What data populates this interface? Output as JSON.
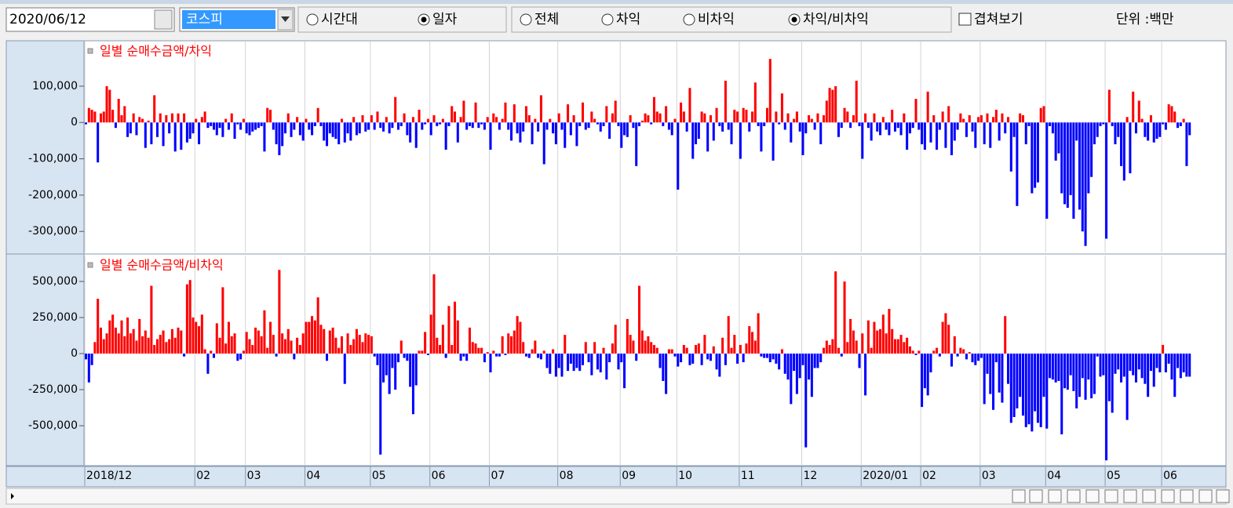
{
  "toolbar": {
    "date": "2020/06/12",
    "market": "코스피",
    "period_options": [
      {
        "label": "시간대",
        "checked": false
      },
      {
        "label": "일자",
        "checked": true
      }
    ],
    "type_options": [
      {
        "label": "전체",
        "checked": false
      },
      {
        "label": "차익",
        "checked": false
      },
      {
        "label": "비차익",
        "checked": false
      },
      {
        "label": "차익/비차익",
        "checked": true
      }
    ],
    "overlay": {
      "label": "겹쳐보기",
      "checked": false
    },
    "unit": "단위 :백만"
  },
  "x_axis": {
    "categories": [
      "2018/12",
      null,
      null,
      null,
      null,
      null,
      null,
      null,
      null,
      null,
      null,
      null,
      null,
      null,
      null,
      null,
      null,
      null,
      null,
      null,
      null,
      null,
      null,
      null,
      null,
      null,
      null,
      null,
      null,
      null,
      null,
      null,
      null,
      null,
      null,
      null,
      null,
      "02",
      null,
      null,
      null,
      null,
      null,
      null,
      null,
      null,
      null,
      null,
      null,
      null,
      null,
      null,
      null,
      null,
      "03",
      null,
      null,
      null,
      null,
      null,
      null,
      null,
      null,
      null,
      null,
      null,
      null,
      null,
      null,
      null,
      null,
      null,
      null,
      null,
      "04",
      null,
      null,
      null,
      null,
      null,
      null,
      null,
      null,
      null,
      null,
      null,
      null,
      null,
      null,
      null,
      null,
      null,
      null,
      null,
      null,
      null,
      "05",
      null,
      null,
      null,
      null,
      null,
      null,
      null,
      null,
      null,
      null,
      null,
      null,
      null,
      null,
      null,
      null,
      null,
      null,
      null,
      "06",
      null,
      null,
      null,
      null,
      null,
      null,
      null,
      null,
      null,
      null,
      null,
      null,
      null,
      null,
      null,
      null,
      null,
      null,
      null,
      "07",
      null,
      null,
      null,
      null,
      null,
      null,
      null,
      null,
      null,
      null,
      null,
      null,
      null,
      null,
      null,
      null,
      null,
      null,
      null,
      null,
      null,
      null,
      "08",
      null,
      null,
      null,
      null,
      null,
      null,
      null,
      null,
      null,
      null,
      null,
      null,
      null,
      null,
      null,
      null,
      null,
      null,
      null,
      null,
      "09",
      null,
      null,
      null,
      null,
      null,
      null,
      null,
      null,
      null,
      null,
      null,
      null,
      null,
      null,
      null,
      null,
      null,
      null,
      "10",
      null,
      null,
      null,
      null,
      null,
      null,
      null,
      null,
      null,
      null,
      null,
      null,
      null,
      null,
      null,
      null,
      null,
      null,
      null,
      null,
      "11",
      null,
      null,
      null,
      null,
      null,
      null,
      null,
      null,
      null,
      null,
      null,
      null,
      null,
      null,
      null,
      null,
      null,
      null,
      null,
      null,
      "12",
      null,
      null,
      null,
      null,
      null,
      null,
      null,
      null,
      null,
      null,
      null,
      null,
      null,
      null,
      null,
      null,
      null,
      null,
      null,
      "2020/01",
      null,
      null,
      null,
      null,
      null,
      null,
      null,
      null,
      null,
      null,
      null,
      null,
      null,
      null,
      null,
      null,
      null,
      null,
      null,
      "02",
      null,
      null,
      null,
      null,
      null,
      null,
      null,
      null,
      null,
      null,
      null,
      null,
      null,
      null,
      null,
      null,
      null,
      null,
      null,
      "03",
      null,
      null,
      null,
      null,
      null,
      null,
      null,
      null,
      null,
      null,
      null,
      null,
      null,
      null,
      null,
      null,
      null,
      null,
      null,
      null,
      null,
      "04",
      null,
      null,
      null,
      null,
      null,
      null,
      null,
      null,
      null,
      null,
      null,
      null,
      null,
      null,
      null,
      null,
      null,
      null,
      null,
      "05",
      null,
      null,
      null,
      null,
      null,
      null,
      null,
      null,
      null,
      null,
      null,
      null,
      null,
      null,
      null,
      null,
      null,
      null,
      "06",
      null,
      null,
      null,
      null,
      null,
      null,
      null,
      null,
      null
    ],
    "grid": true
  },
  "chart_data": [
    {
      "type": "bar",
      "title": "일별 순매수금액/차익",
      "positive_color": "#ff0000",
      "negative_color": "#0000ff",
      "title_color": "#ff0000",
      "ylim": [
        -360000,
        225000
      ],
      "yticks": [
        {
          "value": -300000,
          "label": "-300,000"
        },
        {
          "value": -200000,
          "label": "-200,000"
        },
        {
          "value": -100000,
          "label": "-100,000"
        },
        0,
        {
          "value": 100000,
          "label": "100,000"
        }
      ],
      "values": [
        -5000,
        40000,
        35000,
        30000,
        -110000,
        25000,
        30000,
        100000,
        90000,
        35000,
        -15000,
        65000,
        20000,
        45000,
        -40000,
        -30000,
        25000,
        -35000,
        15000,
        10000,
        -70000,
        5000,
        -60000,
        75000,
        -40000,
        25000,
        -65000,
        20000,
        -30000,
        25000,
        -80000,
        25000,
        -75000,
        25000,
        -55000,
        -45000,
        -30000,
        10000,
        -60000,
        15000,
        30000,
        -15000,
        -10000,
        -20000,
        -35000,
        -15000,
        -40000,
        10000,
        -20000,
        25000,
        -45000,
        -5000,
        -20000,
        10000,
        -30000,
        -35000,
        -25000,
        -20000,
        -15000,
        -10000,
        -80000,
        40000,
        35000,
        -20000,
        -60000,
        -90000,
        -65000,
        -30000,
        25000,
        -40000,
        -20000,
        15000,
        -35000,
        -50000,
        10000,
        -20000,
        -35000,
        -10000,
        40000,
        -10000,
        -50000,
        -65000,
        -30000,
        -40000,
        -45000,
        -60000,
        10000,
        -55000,
        -30000,
        -50000,
        15000,
        -35000,
        -30000,
        20000,
        -25000,
        -20000,
        20000,
        -20000,
        30000,
        -15000,
        -25000,
        15000,
        -30000,
        -15000,
        70000,
        -20000,
        -10000,
        25000,
        -35000,
        -55000,
        15000,
        -70000,
        35000,
        -20000,
        -5000,
        10000,
        -35000,
        20000,
        -10000,
        -5000,
        10000,
        -75000,
        -10000,
        45000,
        30000,
        -55000,
        15000,
        60000,
        -20000,
        -10000,
        -15000,
        55000,
        -15000,
        -5000,
        -20000,
        15000,
        -75000,
        25000,
        15000,
        -20000,
        10000,
        55000,
        -20000,
        -50000,
        50000,
        -30000,
        -55000,
        -25000,
        45000,
        20000,
        -60000,
        10000,
        -25000,
        75000,
        -115000,
        -20000,
        10000,
        -30000,
        -60000,
        25000,
        -20000,
        -70000,
        50000,
        -35000,
        20000,
        -65000,
        -10000,
        55000,
        -20000,
        -15000,
        30000,
        10000,
        -5000,
        -25000,
        -10000,
        45000,
        -45000,
        25000,
        60000,
        -10000,
        -70000,
        -35000,
        -40000,
        20000,
        -15000,
        -120000,
        -10000,
        5000,
        25000,
        20000,
        -5000,
        70000,
        30000,
        25000,
        -10000,
        45000,
        -20000,
        -35000,
        10000,
        -185000,
        55000,
        30000,
        -25000,
        95000,
        -100000,
        -60000,
        -45000,
        30000,
        25000,
        -80000,
        20000,
        -50000,
        40000,
        -10000,
        -25000,
        115000,
        -20000,
        -60000,
        35000,
        30000,
        -100000,
        40000,
        35000,
        -25000,
        30000,
        110000,
        -10000,
        -80000,
        -10000,
        40000,
        175000,
        -105000,
        30000,
        -5000,
        80000,
        -20000,
        25000,
        -55000,
        10000,
        30000,
        -25000,
        -90000,
        -30000,
        20000,
        10000,
        -20000,
        25000,
        -60000,
        20000,
        60000,
        95000,
        90000,
        100000,
        -40000,
        -15000,
        40000,
        30000,
        -15000,
        20000,
        115000,
        -10000,
        -100000,
        25000,
        -15000,
        -50000,
        25000,
        -25000,
        -35000,
        15000,
        -20000,
        -35000,
        35000,
        -25000,
        -15000,
        -35000,
        25000,
        -75000,
        -30000,
        -15000,
        65000,
        -20000,
        -60000,
        -75000,
        85000,
        -55000,
        20000,
        -75000,
        -20000,
        30000,
        -70000,
        45000,
        -90000,
        -50000,
        -20000,
        25000,
        10000,
        -40000,
        20000,
        -25000,
        -70000,
        15000,
        20000,
        -60000,
        25000,
        -70000,
        15000,
        35000,
        -50000,
        25000,
        -30000,
        15000,
        -135000,
        -40000,
        -230000,
        25000,
        20000,
        -60000,
        -10000,
        -195000,
        -180000,
        -165000,
        40000,
        45000,
        -265000,
        -10000,
        -30000,
        -105000,
        -85000,
        -195000,
        -225000,
        -235000,
        -200000,
        -265000,
        -50000,
        -240000,
        -300000,
        -340000,
        -195000,
        -150000,
        -60000,
        -40000,
        -10000,
        -5000,
        -320000,
        90000,
        -10000,
        -60000,
        -40000,
        -120000,
        -160000,
        15000,
        -140000,
        85000,
        -30000,
        60000,
        10000,
        -40000,
        -50000,
        20000,
        -55000,
        -45000,
        -40000,
        -5000,
        -20000,
        50000,
        45000,
        30000,
        -15000,
        -10000,
        10000,
        -120000,
        -35000
      ]
    },
    {
      "type": "bar",
      "title": "일별 순매수금액/비차익",
      "positive_color": "#ff0000",
      "negative_color": "#0000ff",
      "title_color": "#ff0000",
      "ylim": [
        -777000,
        685000
      ],
      "yticks": [
        {
          "value": -500000,
          "label": "-500,000"
        },
        {
          "value": -250000,
          "label": "-250,000"
        },
        0,
        {
          "value": 250000,
          "label": "250,000"
        },
        {
          "value": 500000,
          "label": "500,000"
        }
      ],
      "values": [
        -40000,
        -200000,
        -80000,
        80000,
        380000,
        180000,
        100000,
        140000,
        230000,
        270000,
        180000,
        140000,
        230000,
        120000,
        250000,
        140000,
        170000,
        90000,
        240000,
        120000,
        160000,
        110000,
        470000,
        60000,
        100000,
        130000,
        160000,
        80000,
        100000,
        170000,
        110000,
        180000,
        160000,
        -20000,
        480000,
        510000,
        250000,
        220000,
        190000,
        270000,
        30000,
        -140000,
        20000,
        -30000,
        210000,
        110000,
        460000,
        70000,
        220000,
        120000,
        140000,
        -50000,
        -40000,
        20000,
        150000,
        100000,
        60000,
        180000,
        160000,
        120000,
        300000,
        40000,
        220000,
        130000,
        -20000,
        580000,
        140000,
        100000,
        170000,
        90000,
        -40000,
        110000,
        60000,
        140000,
        220000,
        220000,
        260000,
        230000,
        390000,
        200000,
        170000,
        -50000,
        160000,
        180000,
        110000,
        40000,
        120000,
        -210000,
        140000,
        60000,
        100000,
        170000,
        130000,
        80000,
        140000,
        130000,
        120000,
        -20000,
        -80000,
        -700000,
        -200000,
        -150000,
        -280000,
        -100000,
        -250000,
        -60000,
        90000,
        -30000,
        -50000,
        -230000,
        -420000,
        -220000,
        20000,
        20000,
        150000,
        -10000,
        270000,
        550000,
        110000,
        60000,
        200000,
        -30000,
        330000,
        60000,
        360000,
        230000,
        -50000,
        -20000,
        -50000,
        180000,
        80000,
        70000,
        40000,
        40000,
        -60000,
        10000,
        -130000,
        20000,
        -20000,
        -20000,
        120000,
        -10000,
        140000,
        120000,
        160000,
        260000,
        220000,
        80000,
        -20000,
        -30000,
        30000,
        90000,
        -30000,
        -40000,
        20000,
        -100000,
        -140000,
        30000,
        -160000,
        -100000,
        -160000,
        130000,
        -120000,
        -70000,
        -120000,
        -100000,
        -120000,
        -80000,
        80000,
        -60000,
        -150000,
        80000,
        -110000,
        -130000,
        40000,
        -180000,
        -60000,
        70000,
        200000,
        -110000,
        -60000,
        -240000,
        240000,
        130000,
        90000,
        -50000,
        470000,
        160000,
        90000,
        120000,
        80000,
        60000,
        40000,
        -100000,
        -190000,
        -280000,
        30000,
        30000,
        -20000,
        -90000,
        -60000,
        60000,
        40000,
        -80000,
        -70000,
        60000,
        70000,
        -80000,
        130000,
        -40000,
        -50000,
        50000,
        -110000,
        -160000,
        110000,
        -80000,
        260000,
        40000,
        130000,
        -70000,
        60000,
        -60000,
        70000,
        190000,
        150000,
        90000,
        280000,
        -20000,
        -30000,
        -30000,
        -60000,
        -40000,
        -70000,
        -110000,
        30000,
        -140000,
        -180000,
        -350000,
        -120000,
        -280000,
        -170000,
        -80000,
        -650000,
        -180000,
        -300000,
        -100000,
        -100000,
        -60000,
        40000,
        90000,
        60000,
        100000,
        570000,
        40000,
        -20000,
        500000,
        80000,
        240000,
        160000,
        90000,
        -100000,
        140000,
        -290000,
        230000,
        40000,
        220000,
        160000,
        170000,
        270000,
        140000,
        310000,
        170000,
        100000,
        100000,
        130000,
        80000,
        110000,
        50000,
        20000,
        -10000,
        20000,
        -370000,
        -240000,
        -290000,
        -130000,
        20000,
        40000,
        -20000,
        220000,
        280000,
        200000,
        -90000,
        120000,
        -20000,
        40000,
        30000,
        -40000,
        10000,
        -60000,
        -80000,
        -50000,
        -30000,
        -350000,
        -140000,
        -280000,
        -390000,
        -60000,
        -270000,
        -340000,
        260000,
        -210000,
        -480000,
        -440000,
        -380000,
        -300000,
        -430000,
        -510000,
        -490000,
        -540000,
        -400000,
        -480000,
        -510000,
        -300000,
        -520000,
        -170000,
        -180000,
        -200000,
        -190000,
        -560000,
        -240000,
        -250000,
        -150000,
        -260000,
        -380000,
        -300000,
        -170000,
        -320000,
        -180000,
        -310000,
        -280000,
        -20000,
        -160000,
        -150000,
        -740000,
        -330000,
        -410000,
        -140000,
        -110000,
        -200000,
        -160000,
        -460000,
        -120000,
        -150000,
        -200000,
        -110000,
        -170000,
        -210000,
        -300000,
        -120000,
        -230000,
        -100000,
        -130000,
        60000,
        -130000,
        -70000,
        -180000,
        -300000,
        -100000,
        -170000,
        -130000,
        -160000,
        -160000
      ]
    }
  ]
}
